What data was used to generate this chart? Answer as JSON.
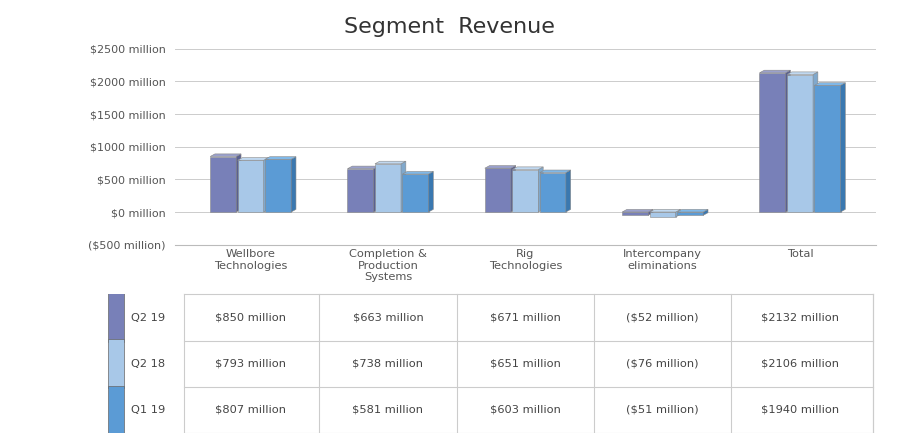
{
  "title": "Segment  Revenue",
  "title_fontsize": 16,
  "categories": [
    "Wellbore\nTechnologies",
    "Completion &\nProduction\nSystems",
    "Rig\nTechnologies",
    "Intercompany\neliminations",
    "Total"
  ],
  "series": {
    "Q2 19": [
      850,
      663,
      671,
      -52,
      2132
    ],
    "Q2 18": [
      793,
      738,
      651,
      -76,
      2106
    ],
    "Q1 19": [
      807,
      581,
      603,
      -51,
      1940
    ]
  },
  "series_order": [
    "Q2 19",
    "Q2 18",
    "Q1 19"
  ],
  "bar_colors_front": {
    "Q2 19": "#7880b8",
    "Q2 18": "#a8c8e8",
    "Q1 19": "#5b9bd5"
  },
  "bar_colors_side": {
    "Q2 19": "#5a6090",
    "Q2 18": "#80a8cc",
    "Q1 19": "#3a78b0"
  },
  "bar_colors_top": {
    "Q2 19": "#9aa0cc",
    "Q2 18": "#c0d8f0",
    "Q1 19": "#80b8e8"
  },
  "ylim": [
    -500,
    2750
  ],
  "yticks": [
    -500,
    0,
    500,
    1000,
    1500,
    2000,
    2500
  ],
  "ytick_labels": [
    "($500 million)",
    "$0 million",
    "$500 million",
    "$1000 million",
    "$1500 million",
    "$2000 million",
    "$2500 million"
  ],
  "legend_labels": [
    "Q2 19",
    "Q2 18",
    "Q1 19"
  ],
  "legend_colors": [
    "#7880b8",
    "#a8c8e8",
    "#5b9bd5"
  ],
  "table_values": [
    [
      "$850 million",
      "$663 million",
      "$671 million",
      "($52 million)",
      "$2132 million"
    ],
    [
      "$793 million",
      "$738 million",
      "$651 million",
      "($76 million)",
      "$2106 million"
    ],
    [
      "$807 million",
      "$581 million",
      "$603 million",
      "($51 million)",
      "$1940 million"
    ]
  ],
  "table_rows": [
    "Q2 19",
    "Q2 18",
    "Q1 19"
  ],
  "background_color": "#ffffff",
  "grid_color": "#cccccc"
}
